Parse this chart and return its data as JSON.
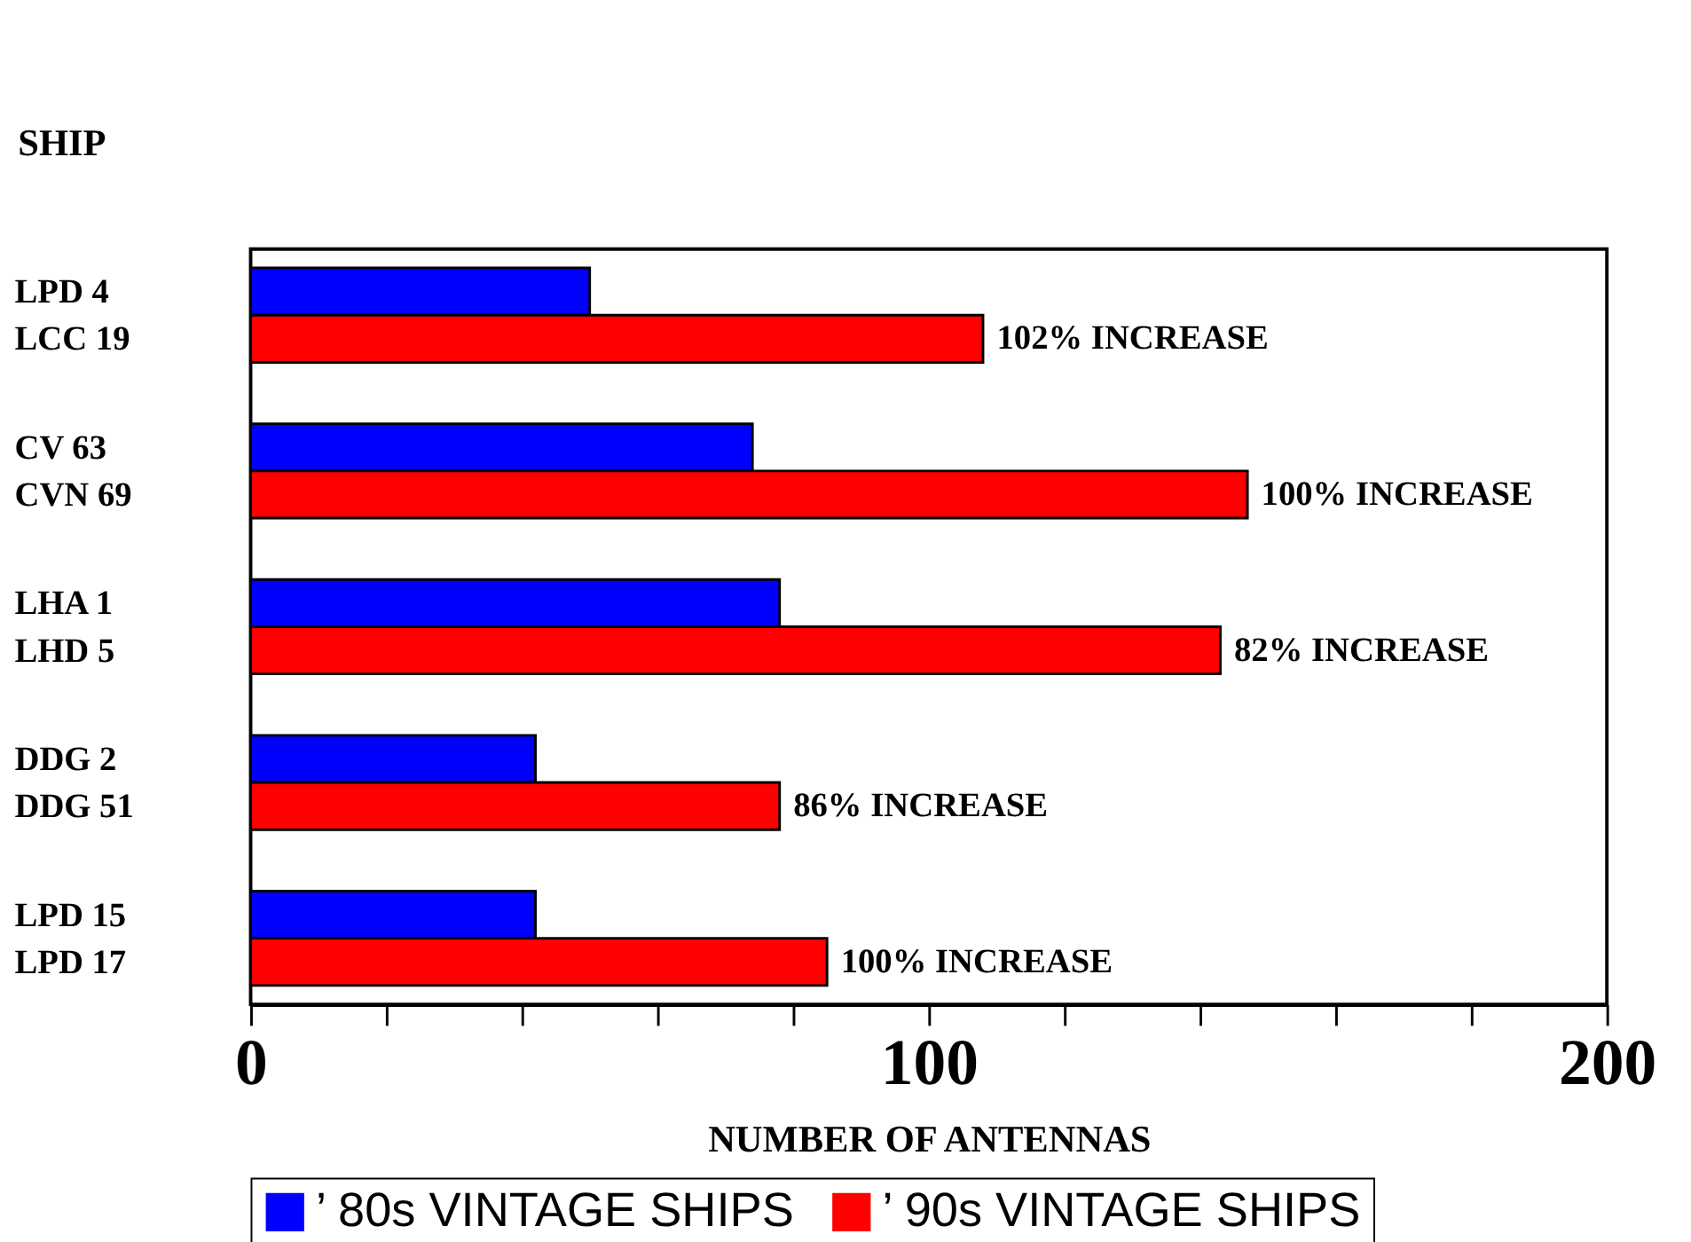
{
  "chart_data": {
    "type": "bar",
    "orientation": "horizontal",
    "ylabel": "SHIP",
    "xlabel": "NUMBER OF ANTENNAS",
    "categories": [
      "LPD 4",
      "LCC 19",
      "CV 63",
      "CVN 69",
      "LHA 1",
      "LHD 5",
      "DDG 2",
      "DDG 51",
      "LPD 15",
      "LPD 17"
    ],
    "series": [
      {
        "name": "’ 80s VINTAGE SHIPS",
        "color": "#0000ff",
        "values": [
          50,
          null,
          74,
          null,
          78,
          null,
          42,
          null,
          42,
          null
        ]
      },
      {
        "name": "’ 90s VINTAGE SHIPS",
        "color": "#ff0000",
        "values": [
          null,
          108,
          null,
          147,
          null,
          143,
          null,
          78,
          null,
          85
        ]
      }
    ],
    "xlim": [
      0,
      200
    ],
    "xticks": [
      0,
      {
        "value": 20,
        "label": null
      },
      {
        "value": 40,
        "label": null
      },
      {
        "value": 60,
        "label": null
      },
      {
        "value": 80,
        "label": null
      },
      100,
      {
        "value": 120,
        "label": null
      },
      {
        "value": 140,
        "label": null
      },
      {
        "value": 160,
        "label": null
      },
      {
        "value": 180,
        "label": null
      },
      200
    ],
    "annotations": [
      {
        "text": "102% INCREASE",
        "x": 108,
        "y": "LCC 19"
      },
      {
        "text": "100% INCREASE",
        "x": 147,
        "y": "CVN 69"
      },
      {
        "text": "82% INCREASE",
        "x": 143,
        "y": "LHD 5"
      },
      {
        "text": "86% INCREASE",
        "x": 78,
        "y": "DDG 51"
      },
      {
        "text": "100% INCREASE",
        "x": 85,
        "y": "LPD 17"
      }
    ],
    "grid": false,
    "legend": "bottom"
  }
}
